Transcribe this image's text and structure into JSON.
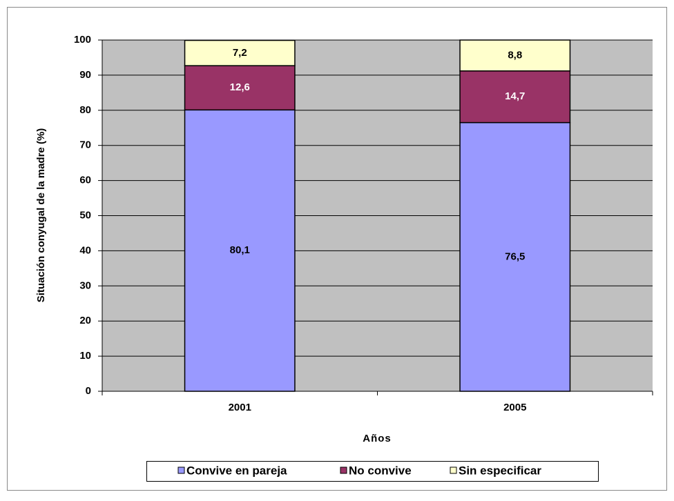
{
  "chart_data": {
    "type": "bar",
    "stacked": true,
    "x_label": "Años",
    "y_label": "Situación conyugal de la madre  (%)",
    "categories": [
      "2001",
      "2005"
    ],
    "series": [
      {
        "name": "Convive en pareja",
        "color": "#9999ff",
        "values": [
          80.1,
          76.5
        ],
        "value_labels": [
          "80,1",
          "76,5"
        ]
      },
      {
        "name": "No convive",
        "color": "#993366",
        "values": [
          12.6,
          14.7
        ],
        "value_labels": [
          "12,6",
          "14,7"
        ]
      },
      {
        "name": "Sin especificar",
        "color": "#ffffcc",
        "values": [
          7.2,
          8.8
        ],
        "value_labels": [
          "7,2",
          "8,8"
        ]
      }
    ],
    "ylim": [
      0,
      100
    ],
    "yticks": [
      0,
      10,
      20,
      30,
      40,
      50,
      60,
      70,
      80,
      90,
      100
    ],
    "grid": true,
    "legend": "bottom",
    "plot_background": "#c0c0c0"
  }
}
